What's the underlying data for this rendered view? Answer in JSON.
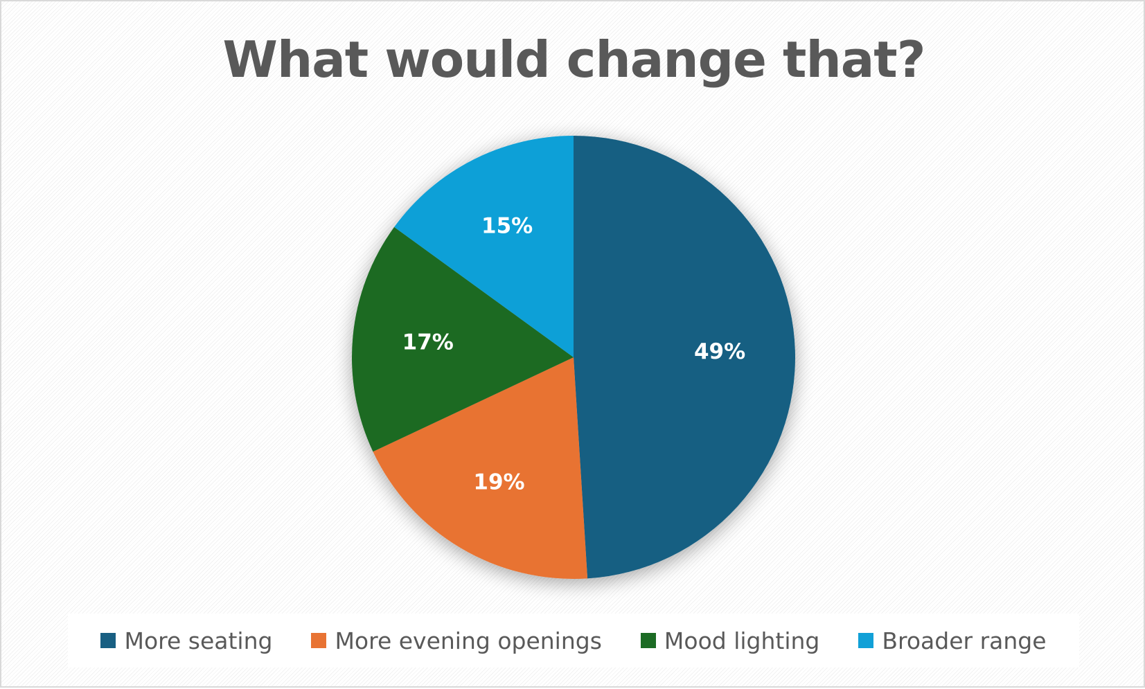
{
  "chart_data": {
    "type": "pie",
    "title": "What would change that?",
    "categories": [
      "More seating",
      "More evening openings",
      "Mood lighting",
      "Broader range"
    ],
    "values": [
      49,
      19,
      17,
      15
    ],
    "labels": [
      "49%",
      "19%",
      "17%",
      "15%"
    ],
    "colors": [
      "#185f82",
      "#e87333",
      "#1c6b24",
      "#11a0d7"
    ],
    "start_angle_deg": 0,
    "direction": "clockwise",
    "legend_position": "bottom"
  }
}
